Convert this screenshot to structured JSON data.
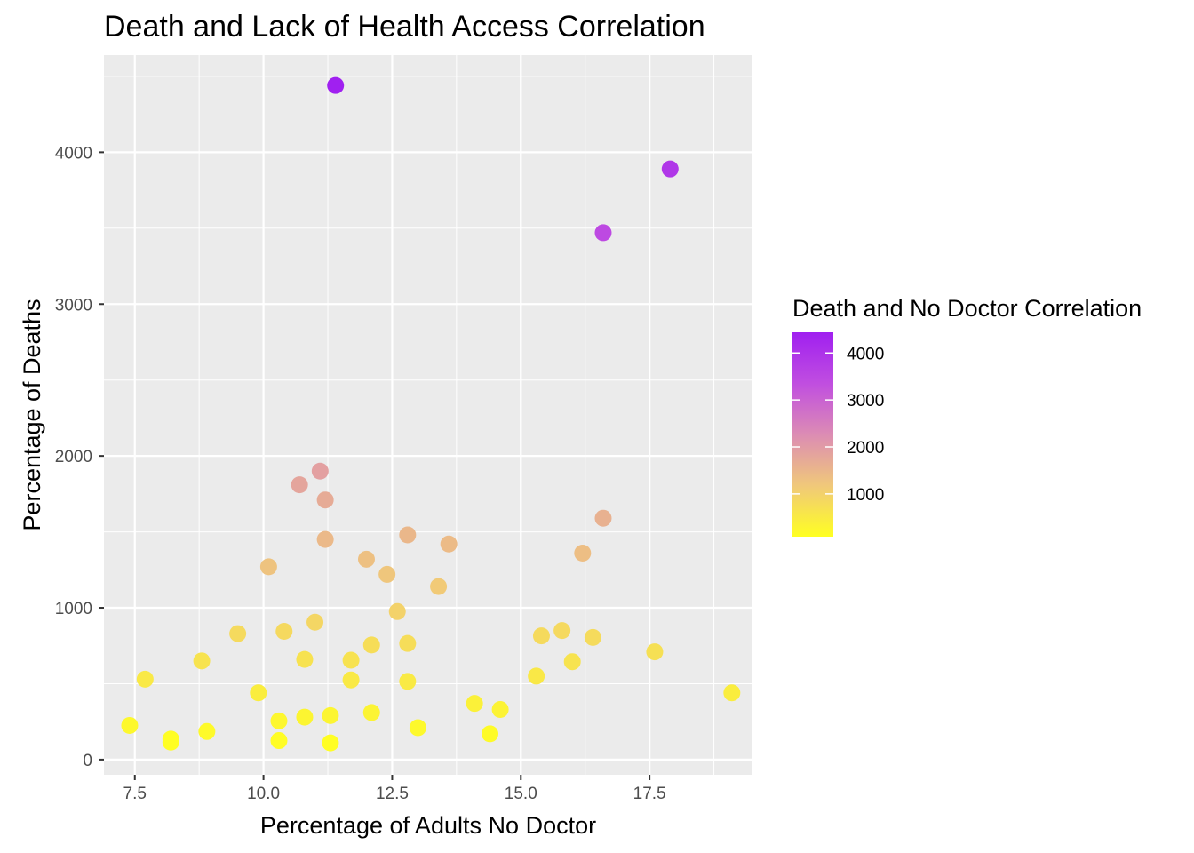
{
  "chart_data": {
    "type": "scatter",
    "title": "Death and Lack of Health Access Correlation",
    "xlabel": "Percentage of Adults No Doctor",
    "ylabel": "Percentage of Deaths",
    "xlim": [
      6.9,
      19.5
    ],
    "ylim": [
      -100,
      4640
    ],
    "x_ticks": [
      "7.5",
      "10.0",
      "12.5",
      "15.0",
      "17.5"
    ],
    "x_tick_values": [
      7.5,
      10.0,
      12.5,
      15.0,
      17.5
    ],
    "y_ticks": [
      "0",
      "1000",
      "2000",
      "3000",
      "4000"
    ],
    "y_tick_values": [
      0,
      1000,
      2000,
      3000,
      4000
    ],
    "grid": true,
    "legend": {
      "title": "Death and No Doctor Correlation",
      "placement": "right",
      "labels": [
        "4000",
        "3000",
        "2000",
        "1000"
      ],
      "values": [
        4000,
        3000,
        2000,
        1000
      ],
      "range": [
        90,
        4440
      ],
      "colors": [
        "#FFFF22",
        "#F0C87A",
        "#DC8CB4",
        "#C04EE0",
        "#A020F0"
      ]
    },
    "points": [
      {
        "x": 11.4,
        "y": 4440
      },
      {
        "x": 17.9,
        "y": 3890
      },
      {
        "x": 16.6,
        "y": 3470
      },
      {
        "x": 11.1,
        "y": 1900
      },
      {
        "x": 10.7,
        "y": 1810
      },
      {
        "x": 11.2,
        "y": 1710
      },
      {
        "x": 16.6,
        "y": 1590
      },
      {
        "x": 12.8,
        "y": 1480
      },
      {
        "x": 11.2,
        "y": 1450
      },
      {
        "x": 13.6,
        "y": 1420
      },
      {
        "x": 16.2,
        "y": 1360
      },
      {
        "x": 12.0,
        "y": 1320
      },
      {
        "x": 10.1,
        "y": 1270
      },
      {
        "x": 12.4,
        "y": 1220
      },
      {
        "x": 13.4,
        "y": 1140
      },
      {
        "x": 12.6,
        "y": 975
      },
      {
        "x": 11.0,
        "y": 905
      },
      {
        "x": 15.8,
        "y": 850
      },
      {
        "x": 10.4,
        "y": 845
      },
      {
        "x": 9.5,
        "y": 830
      },
      {
        "x": 15.4,
        "y": 815
      },
      {
        "x": 16.4,
        "y": 805
      },
      {
        "x": 12.8,
        "y": 765
      },
      {
        "x": 12.1,
        "y": 755
      },
      {
        "x": 17.6,
        "y": 710
      },
      {
        "x": 10.8,
        "y": 660
      },
      {
        "x": 11.7,
        "y": 655
      },
      {
        "x": 8.8,
        "y": 650
      },
      {
        "x": 16.0,
        "y": 645
      },
      {
        "x": 15.3,
        "y": 550
      },
      {
        "x": 7.7,
        "y": 530
      },
      {
        "x": 11.7,
        "y": 525
      },
      {
        "x": 12.8,
        "y": 515
      },
      {
        "x": 9.9,
        "y": 440
      },
      {
        "x": 19.1,
        "y": 440
      },
      {
        "x": 14.1,
        "y": 370
      },
      {
        "x": 14.6,
        "y": 330
      },
      {
        "x": 12.1,
        "y": 310
      },
      {
        "x": 11.3,
        "y": 290
      },
      {
        "x": 10.8,
        "y": 280
      },
      {
        "x": 10.3,
        "y": 255
      },
      {
        "x": 7.4,
        "y": 225
      },
      {
        "x": 13.0,
        "y": 210
      },
      {
        "x": 8.9,
        "y": 185
      },
      {
        "x": 14.4,
        "y": 170
      },
      {
        "x": 8.2,
        "y": 135
      },
      {
        "x": 10.3,
        "y": 125
      },
      {
        "x": 8.2,
        "y": 115
      },
      {
        "x": 11.3,
        "y": 110
      }
    ]
  }
}
